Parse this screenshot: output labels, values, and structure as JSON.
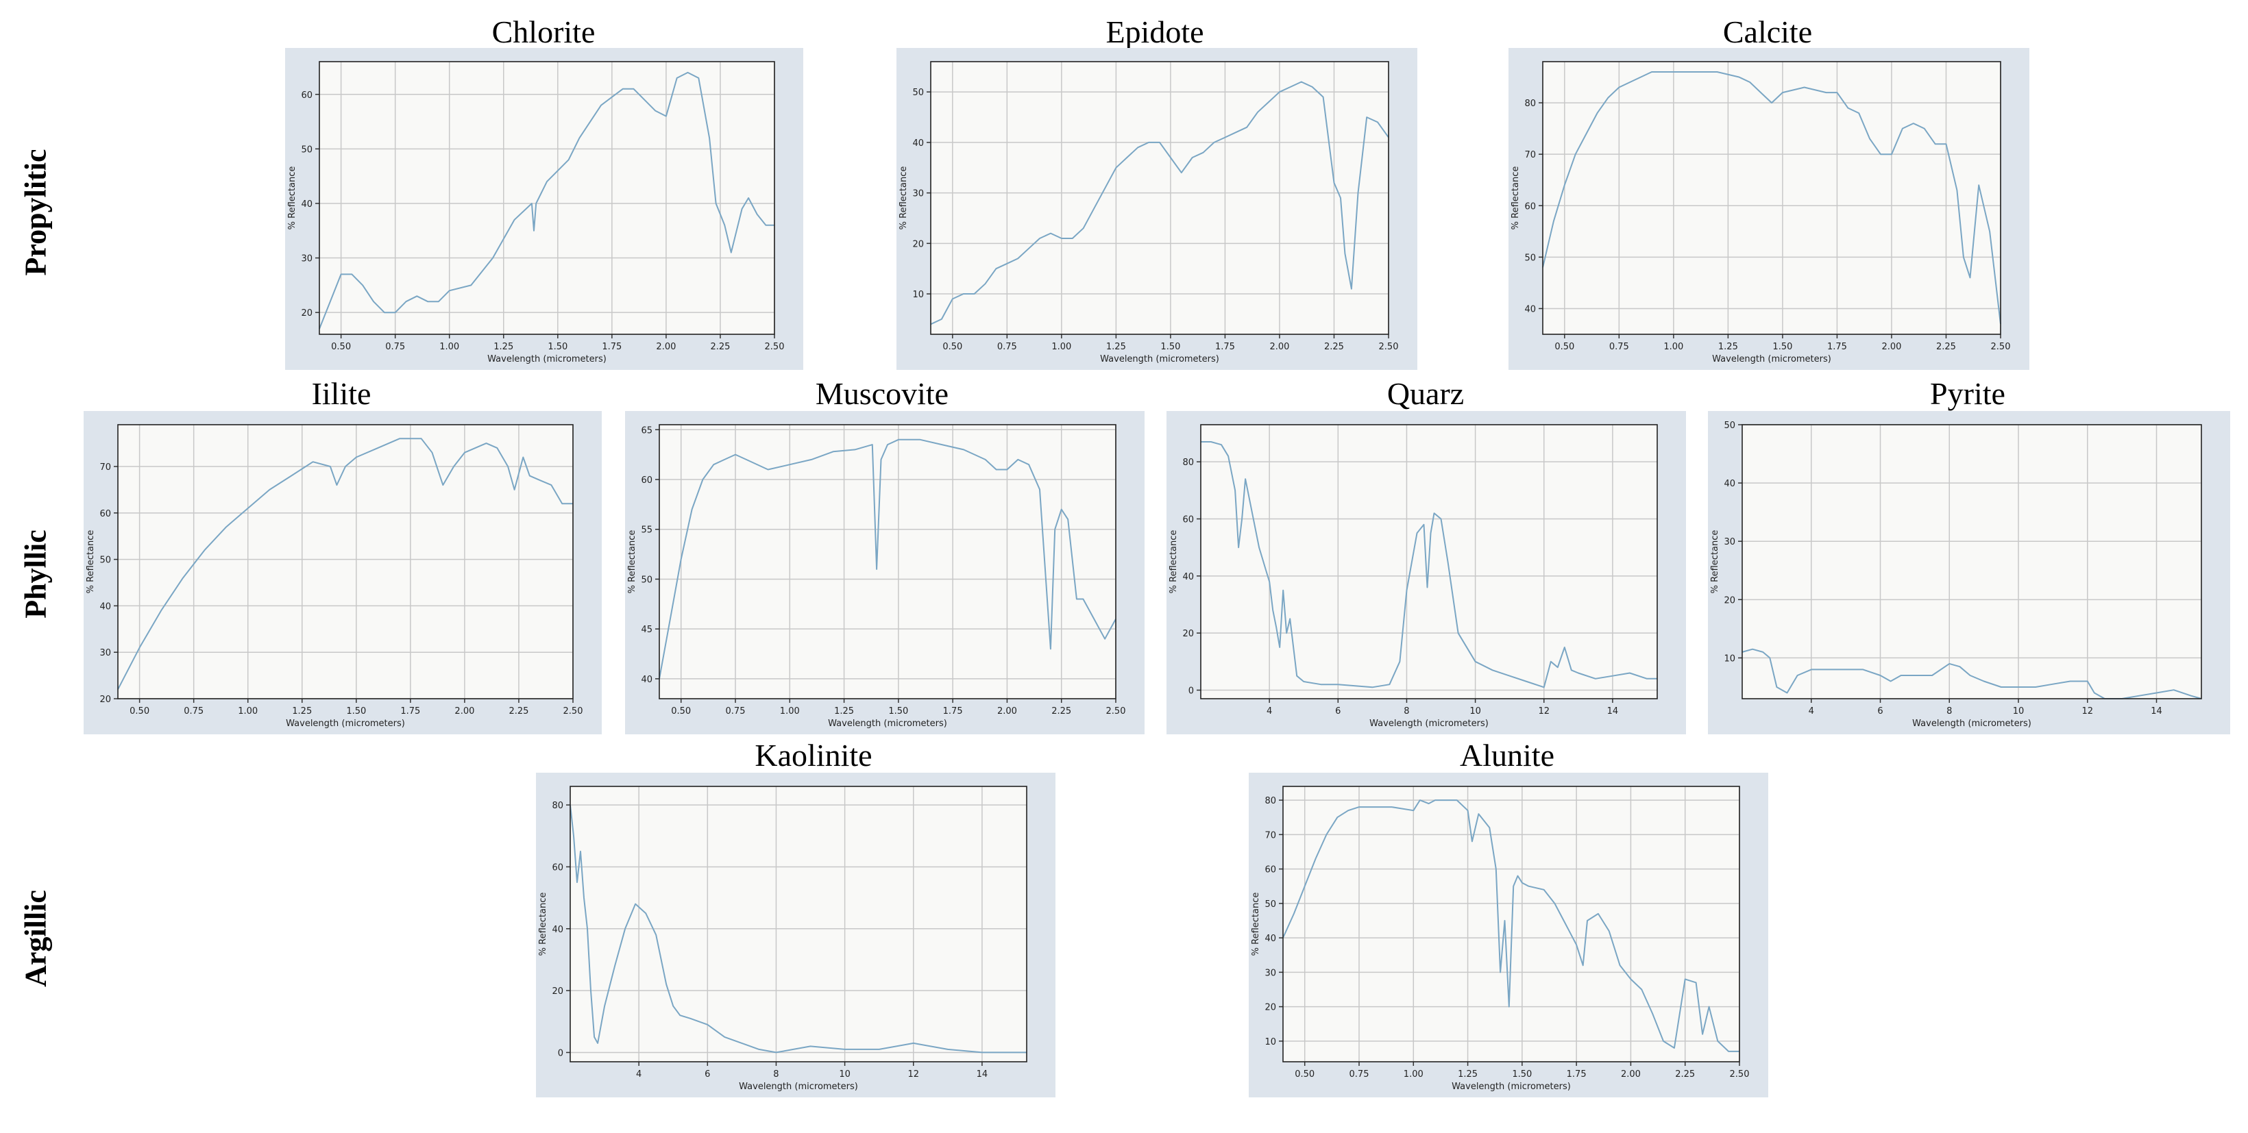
{
  "row_labels": [
    "Propylitic",
    "Phyllic",
    "Argillic"
  ],
  "chart_data": [
    {
      "type": "line",
      "title": "Chlorite",
      "xlabel": "Wavelength (micrometers)",
      "ylabel": "% Reflectance",
      "xlim": [
        0.4,
        2.5
      ],
      "ylim": [
        16,
        66
      ],
      "xticks": [
        0.5,
        0.75,
        1.0,
        1.25,
        1.5,
        1.75,
        2.0,
        2.25,
        2.5
      ],
      "xtick_labels": [
        "0.50",
        "0.75",
        "1.00",
        "1.25",
        "1.50",
        "1.75",
        "2.00",
        "2.25",
        "2.50"
      ],
      "yticks": [
        20,
        30,
        40,
        50,
        60
      ],
      "ytick_labels": [
        "20",
        "30",
        "40",
        "50",
        "60"
      ],
      "grid": true,
      "series": [
        {
          "x": [
            0.4,
            0.45,
            0.5,
            0.55,
            0.6,
            0.65,
            0.7,
            0.75,
            0.8,
            0.85,
            0.9,
            0.95,
            1.0,
            1.1,
            1.2,
            1.3,
            1.38,
            1.39,
            1.4,
            1.45,
            1.5,
            1.55,
            1.6,
            1.7,
            1.8,
            1.85,
            1.9,
            1.95,
            2.0,
            2.05,
            2.1,
            2.15,
            2.2,
            2.23,
            2.27,
            2.3,
            2.35,
            2.38,
            2.42,
            2.46,
            2.5
          ],
          "y": [
            17,
            22,
            27,
            27,
            25,
            22,
            20,
            20,
            22,
            23,
            22,
            22,
            24,
            25,
            30,
            37,
            40,
            35,
            40,
            44,
            46,
            48,
            52,
            58,
            61,
            61,
            59,
            57,
            56,
            63,
            64,
            63,
            52,
            40,
            36,
            31,
            39,
            41,
            38,
            36,
            36
          ]
        }
      ]
    },
    {
      "type": "line",
      "title": "Epidote",
      "xlabel": "Wavelength (micrometers)",
      "ylabel": "% Reflectance",
      "xlim": [
        0.4,
        2.5
      ],
      "ylim": [
        2,
        56
      ],
      "xticks": [
        0.5,
        0.75,
        1.0,
        1.25,
        1.5,
        1.75,
        2.0,
        2.25,
        2.5
      ],
      "xtick_labels": [
        "0.50",
        "0.75",
        "1.00",
        "1.25",
        "1.50",
        "1.75",
        "2.00",
        "2.25",
        "2.50"
      ],
      "yticks": [
        10,
        20,
        30,
        40,
        50
      ],
      "ytick_labels": [
        "10",
        "20",
        "30",
        "40",
        "50"
      ],
      "grid": true,
      "series": [
        {
          "x": [
            0.4,
            0.45,
            0.5,
            0.55,
            0.6,
            0.65,
            0.7,
            0.75,
            0.8,
            0.85,
            0.9,
            0.95,
            1.0,
            1.05,
            1.1,
            1.15,
            1.2,
            1.25,
            1.3,
            1.35,
            1.4,
            1.45,
            1.5,
            1.55,
            1.6,
            1.65,
            1.7,
            1.75,
            1.8,
            1.85,
            1.9,
            1.95,
            2.0,
            2.05,
            2.1,
            2.15,
            2.2,
            2.25,
            2.28,
            2.3,
            2.33,
            2.36,
            2.4,
            2.45,
            2.5
          ],
          "y": [
            4,
            5,
            9,
            10,
            10,
            12,
            15,
            16,
            17,
            19,
            21,
            22,
            21,
            21,
            23,
            27,
            31,
            35,
            37,
            39,
            40,
            40,
            37,
            34,
            37,
            38,
            40,
            41,
            42,
            43,
            46,
            48,
            50,
            51,
            52,
            51,
            49,
            32,
            29,
            18,
            11,
            30,
            45,
            44,
            41
          ]
        }
      ]
    },
    {
      "type": "line",
      "title": "Calcite",
      "xlabel": "Wavelength (micrometers)",
      "ylabel": "% Reflectance",
      "xlim": [
        0.4,
        2.5
      ],
      "ylim": [
        35,
        88
      ],
      "xticks": [
        0.5,
        0.75,
        1.0,
        1.25,
        1.5,
        1.75,
        2.0,
        2.25,
        2.5
      ],
      "xtick_labels": [
        "0.50",
        "0.75",
        "1.00",
        "1.25",
        "1.50",
        "1.75",
        "2.00",
        "2.25",
        "2.50"
      ],
      "yticks": [
        40,
        50,
        60,
        70,
        80
      ],
      "ytick_labels": [
        "40",
        "50",
        "60",
        "70",
        "80"
      ],
      "grid": true,
      "series": [
        {
          "x": [
            0.4,
            0.45,
            0.5,
            0.55,
            0.6,
            0.65,
            0.7,
            0.75,
            0.8,
            0.85,
            0.9,
            1.0,
            1.1,
            1.2,
            1.3,
            1.35,
            1.4,
            1.45,
            1.5,
            1.6,
            1.7,
            1.75,
            1.8,
            1.85,
            1.9,
            1.95,
            2.0,
            2.05,
            2.1,
            2.15,
            2.2,
            2.25,
            2.3,
            2.33,
            2.36,
            2.4,
            2.45,
            2.5
          ],
          "y": [
            48,
            57,
            64,
            70,
            74,
            78,
            81,
            83,
            84,
            85,
            86,
            86,
            86,
            86,
            85,
            84,
            82,
            80,
            82,
            83,
            82,
            82,
            79,
            78,
            73,
            70,
            70,
            75,
            76,
            75,
            72,
            72,
            63,
            50,
            46,
            64,
            55,
            37
          ]
        }
      ]
    },
    {
      "type": "line",
      "title": "Iilite",
      "xlabel": "Wavelength (micrometers)",
      "ylabel": "% Reflectance",
      "xlim": [
        0.4,
        2.5
      ],
      "ylim": [
        20,
        79
      ],
      "xticks": [
        0.5,
        0.75,
        1.0,
        1.25,
        1.5,
        1.75,
        2.0,
        2.25,
        2.5
      ],
      "xtick_labels": [
        "0.50",
        "0.75",
        "1.00",
        "1.25",
        "1.50",
        "1.75",
        "2.00",
        "2.25",
        "2.50"
      ],
      "yticks": [
        20,
        30,
        40,
        50,
        60,
        70
      ],
      "ytick_labels": [
        "20",
        "30",
        "40",
        "50",
        "60",
        "70"
      ],
      "grid": true,
      "series": [
        {
          "x": [
            0.4,
            0.5,
            0.6,
            0.7,
            0.8,
            0.9,
            1.0,
            1.1,
            1.2,
            1.3,
            1.38,
            1.41,
            1.45,
            1.5,
            1.6,
            1.7,
            1.8,
            1.85,
            1.9,
            1.95,
            2.0,
            2.1,
            2.15,
            2.2,
            2.23,
            2.27,
            2.3,
            2.35,
            2.4,
            2.45,
            2.5
          ],
          "y": [
            22,
            31,
            39,
            46,
            52,
            57,
            61,
            65,
            68,
            71,
            70,
            66,
            70,
            72,
            74,
            76,
            76,
            73,
            66,
            70,
            73,
            75,
            74,
            70,
            65,
            72,
            68,
            67,
            66,
            62,
            62
          ]
        }
      ]
    },
    {
      "type": "line",
      "title": "Muscovite",
      "xlabel": "Wavelength (micrometers)",
      "ylabel": "% Reflectance",
      "xlim": [
        0.4,
        2.5
      ],
      "ylim": [
        38,
        65.5
      ],
      "xticks": [
        0.5,
        0.75,
        1.0,
        1.25,
        1.5,
        1.75,
        2.0,
        2.25,
        2.5
      ],
      "xtick_labels": [
        "0.50",
        "0.75",
        "1.00",
        "1.25",
        "1.50",
        "1.75",
        "2.00",
        "2.25",
        "2.50"
      ],
      "yticks": [
        40,
        45,
        50,
        55,
        60,
        65
      ],
      "ytick_labels": [
        "40",
        "45",
        "50",
        "55",
        "60",
        "65"
      ],
      "grid": true,
      "series": [
        {
          "x": [
            0.4,
            0.45,
            0.5,
            0.55,
            0.6,
            0.65,
            0.7,
            0.75,
            0.8,
            0.9,
            1.0,
            1.1,
            1.2,
            1.3,
            1.38,
            1.4,
            1.42,
            1.45,
            1.5,
            1.6,
            1.7,
            1.8,
            1.9,
            1.95,
            2.0,
            2.05,
            2.1,
            2.15,
            2.2,
            2.22,
            2.25,
            2.28,
            2.32,
            2.35,
            2.4,
            2.45,
            2.5
          ],
          "y": [
            40,
            46,
            52,
            57,
            60,
            61.5,
            62,
            62.5,
            62,
            61,
            61.5,
            62,
            62.8,
            63,
            63.5,
            51,
            62,
            63.5,
            64,
            64,
            63.5,
            63,
            62,
            61,
            61,
            62,
            61.5,
            59,
            43,
            55,
            57,
            56,
            48,
            48,
            46,
            44,
            46
          ]
        }
      ]
    },
    {
      "type": "line",
      "title": "Quarz",
      "xlabel": "Wavelength (micrometers)",
      "ylabel": "% Reflectance",
      "xlim": [
        2.0,
        15.3
      ],
      "ylim": [
        -3,
        93
      ],
      "xticks": [
        4,
        6,
        8,
        10,
        12,
        14
      ],
      "xtick_labels": [
        "4",
        "6",
        "8",
        "10",
        "12",
        "14"
      ],
      "yticks": [
        0,
        20,
        40,
        60,
        80
      ],
      "ytick_labels": [
        "0",
        "20",
        "40",
        "60",
        "80"
      ],
      "grid": true,
      "series": [
        {
          "x": [
            2.0,
            2.3,
            2.6,
            2.8,
            3.0,
            3.1,
            3.2,
            3.3,
            3.5,
            3.7,
            3.9,
            4.0,
            4.1,
            4.2,
            4.3,
            4.4,
            4.5,
            4.6,
            4.8,
            5.0,
            5.5,
            6.0,
            7.0,
            7.5,
            7.8,
            8.0,
            8.3,
            8.5,
            8.6,
            8.7,
            8.8,
            9.0,
            9.2,
            9.5,
            10.0,
            10.5,
            11.0,
            11.5,
            12.0,
            12.2,
            12.4,
            12.6,
            12.8,
            13.0,
            13.5,
            14.0,
            14.5,
            15.0,
            15.3
          ],
          "y": [
            87,
            87,
            86,
            82,
            70,
            50,
            60,
            74,
            62,
            50,
            42,
            38,
            28,
            22,
            15,
            35,
            20,
            25,
            5,
            3,
            2,
            2,
            1,
            2,
            10,
            35,
            55,
            58,
            36,
            55,
            62,
            60,
            45,
            20,
            10,
            7,
            5,
            3,
            1,
            10,
            8,
            15,
            7,
            6,
            4,
            5,
            6,
            4,
            4
          ]
        }
      ]
    },
    {
      "type": "line",
      "title": "Pyrite",
      "xlabel": "Wavelength (micrometers)",
      "ylabel": "% Reflectance",
      "xlim": [
        2.0,
        15.3
      ],
      "ylim": [
        3,
        50
      ],
      "xticks": [
        4,
        6,
        8,
        10,
        12,
        14
      ],
      "xtick_labels": [
        "4",
        "6",
        "8",
        "10",
        "12",
        "14"
      ],
      "yticks": [
        10,
        20,
        30,
        40,
        50
      ],
      "ytick_labels": [
        "10",
        "20",
        "30",
        "40",
        "50"
      ],
      "grid": true,
      "series": [
        {
          "x": [
            2.0,
            2.3,
            2.6,
            2.8,
            3.0,
            3.3,
            3.6,
            4.0,
            4.5,
            5.0,
            5.5,
            6.0,
            6.3,
            6.6,
            7.0,
            7.5,
            8.0,
            8.3,
            8.6,
            9.0,
            9.5,
            10.0,
            10.5,
            11.0,
            11.5,
            12.0,
            12.2,
            12.5,
            13.0,
            13.5,
            14.0,
            14.5,
            15.0,
            15.3
          ],
          "y": [
            11,
            11.5,
            11,
            10,
            5,
            4,
            7,
            8,
            8,
            8,
            8,
            7,
            6,
            7,
            7,
            7,
            9,
            8.5,
            7,
            6,
            5,
            5,
            5,
            5.5,
            6,
            6,
            4,
            3,
            3,
            3.5,
            4,
            4.5,
            3.5,
            3
          ]
        }
      ]
    },
    {
      "type": "line",
      "title": "Kaolinite",
      "xlabel": "Wavelength (micrometers)",
      "ylabel": "% Reflectance",
      "xlim": [
        2.0,
        15.3
      ],
      "ylim": [
        -3,
        86
      ],
      "xticks": [
        4,
        6,
        8,
        10,
        12,
        14
      ],
      "xtick_labels": [
        "4",
        "6",
        "8",
        "10",
        "12",
        "14"
      ],
      "yticks": [
        0,
        20,
        40,
        60,
        80
      ],
      "ytick_labels": [
        "0",
        "20",
        "40",
        "60",
        "80"
      ],
      "grid": true,
      "series": [
        {
          "x": [
            2.0,
            2.1,
            2.2,
            2.3,
            2.4,
            2.5,
            2.6,
            2.7,
            2.8,
            3.0,
            3.3,
            3.6,
            3.9,
            4.2,
            4.5,
            4.8,
            5.0,
            5.2,
            5.5,
            6.0,
            6.5,
            7.0,
            7.5,
            8.0,
            8.5,
            9.0,
            10.0,
            11.0,
            12.0,
            13.0,
            14.0,
            15.3
          ],
          "y": [
            80,
            70,
            55,
            65,
            50,
            40,
            20,
            5,
            3,
            15,
            28,
            40,
            48,
            45,
            38,
            22,
            15,
            12,
            11,
            9,
            5,
            3,
            1,
            0,
            1,
            2,
            1,
            1,
            3,
            1,
            0,
            0
          ]
        }
      ]
    },
    {
      "type": "line",
      "title": "Alunite",
      "xlabel": "Wavelength (micrometers)",
      "ylabel": "% Reflectance",
      "xlim": [
        0.4,
        2.5
      ],
      "ylim": [
        4,
        84
      ],
      "xticks": [
        0.5,
        0.75,
        1.0,
        1.25,
        1.5,
        1.75,
        2.0,
        2.25,
        2.5
      ],
      "xtick_labels": [
        "0.50",
        "0.75",
        "1.00",
        "1.25",
        "1.50",
        "1.75",
        "2.00",
        "2.25",
        "2.50"
      ],
      "yticks": [
        10,
        20,
        30,
        40,
        50,
        60,
        70,
        80
      ],
      "ytick_labels": [
        "10",
        "20",
        "30",
        "40",
        "50",
        "60",
        "70",
        "80"
      ],
      "grid": true,
      "series": [
        {
          "x": [
            0.4,
            0.45,
            0.5,
            0.55,
            0.6,
            0.65,
            0.7,
            0.75,
            0.8,
            0.9,
            1.0,
            1.03,
            1.07,
            1.1,
            1.2,
            1.25,
            1.27,
            1.3,
            1.35,
            1.38,
            1.4,
            1.42,
            1.44,
            1.46,
            1.48,
            1.5,
            1.53,
            1.6,
            1.65,
            1.7,
            1.75,
            1.78,
            1.8,
            1.85,
            1.9,
            1.95,
            2.0,
            2.05,
            2.1,
            2.15,
            2.2,
            2.25,
            2.3,
            2.33,
            2.36,
            2.4,
            2.45,
            2.5
          ],
          "y": [
            40,
            47,
            55,
            63,
            70,
            75,
            77,
            78,
            78,
            78,
            77,
            80,
            79,
            80,
            80,
            77,
            68,
            76,
            72,
            60,
            30,
            45,
            20,
            55,
            58,
            56,
            55,
            54,
            50,
            44,
            38,
            32,
            45,
            47,
            42,
            32,
            28,
            25,
            18,
            10,
            8,
            28,
            27,
            12,
            20,
            10,
            7,
            7
          ]
        }
      ]
    }
  ]
}
